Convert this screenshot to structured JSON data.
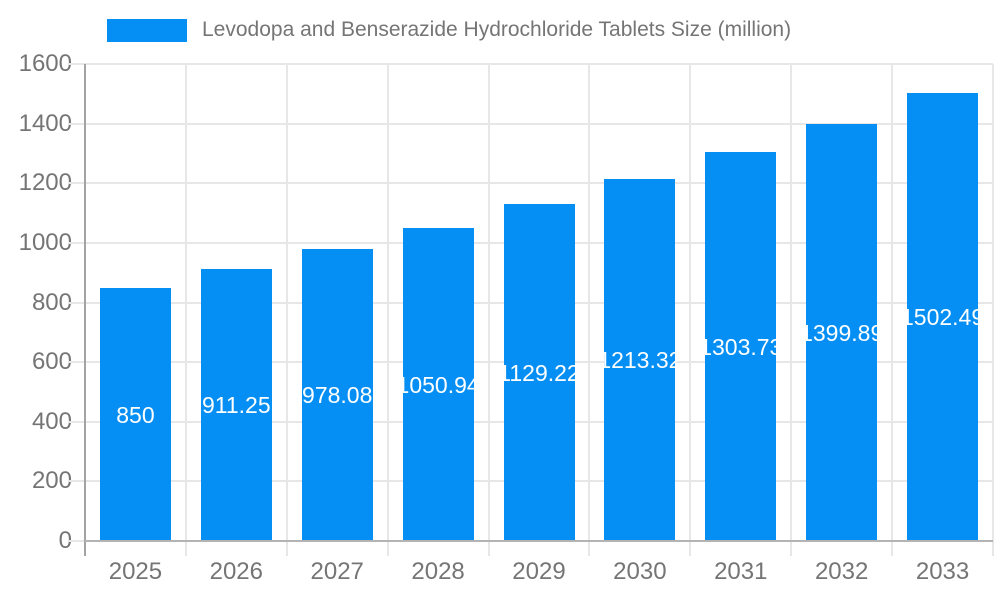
{
  "legend": {
    "label": "Levodopa and Benserazide Hydrochloride Tablets Size (million)"
  },
  "chart_data": {
    "type": "bar",
    "title": "Levodopa and Benserazide Hydrochloride Tablets Size (million)",
    "categories": [
      "2025",
      "2026",
      "2027",
      "2028",
      "2029",
      "2030",
      "2031",
      "2032",
      "2033"
    ],
    "values": [
      850,
      911.25,
      978.08,
      1050.94,
      1129.22,
      1213.32,
      1303.73,
      1399.89,
      1502.49
    ],
    "value_labels": [
      "850",
      "911.25",
      "978.08",
      "1050.94",
      "1129.22",
      "1213.32",
      "1303.73",
      "1399.89",
      "1502.49"
    ],
    "xlabel": "",
    "ylabel": "",
    "ylim": [
      0,
      1600
    ],
    "yticks": [
      0,
      200,
      400,
      600,
      800,
      1000,
      1200,
      1400,
      1600
    ],
    "grid": true,
    "legend_position": "top-left",
    "colors": {
      "bar": "#058FF5",
      "text": "#757575",
      "grid": "#e7e7e7",
      "y_axis": "#a3a3a3",
      "x_axis": "#b3b3b3",
      "bar_label": "#ffffff",
      "background": "#ffffff"
    }
  }
}
